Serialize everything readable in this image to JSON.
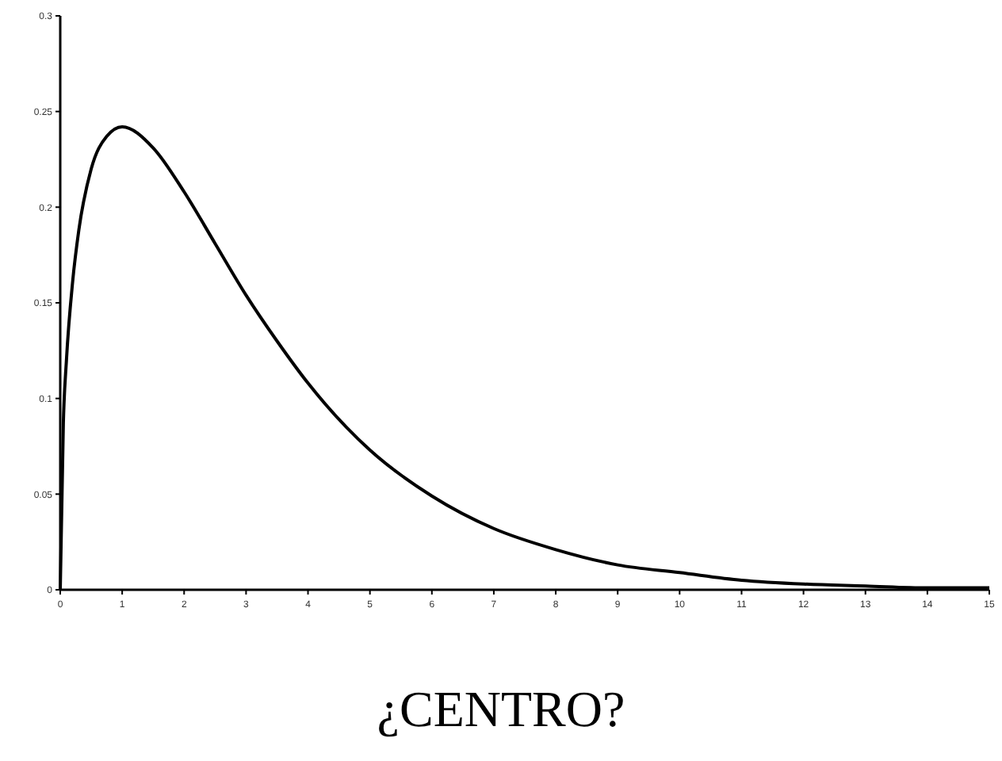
{
  "chart_data": {
    "type": "line",
    "title": "¿CENTRO?",
    "x": [
      0,
      0.05,
      0.1,
      0.2,
      0.3,
      0.5,
      0.75,
      1,
      1.5,
      2,
      2.5,
      3,
      3.5,
      4,
      5,
      6,
      7,
      8,
      9,
      10,
      11,
      12,
      13,
      14,
      15
    ],
    "series": [
      {
        "color": "#000000",
        "values": [
          0,
          0.087,
          0.12,
          0.161,
          0.188,
          0.22,
          0.237,
          0.242,
          0.231,
          0.208,
          0.181,
          0.154,
          0.13,
          0.108,
          0.073,
          0.049,
          0.032,
          0.021,
          0.013,
          0.009,
          0.005,
          0.003,
          0.002,
          0.001,
          0.001
        ]
      }
    ],
    "xlim": [
      0,
      15
    ],
    "xticks": [
      0,
      1,
      2,
      3,
      4,
      5,
      6,
      7,
      8,
      9,
      10,
      11,
      12,
      13,
      14,
      15
    ],
    "ylim": [
      0,
      0.3
    ],
    "yticks": [
      0,
      0.05,
      0.1,
      0.15,
      0.2,
      0.25,
      0.3
    ],
    "grid": false,
    "marker": "none",
    "line_style": "solid"
  }
}
